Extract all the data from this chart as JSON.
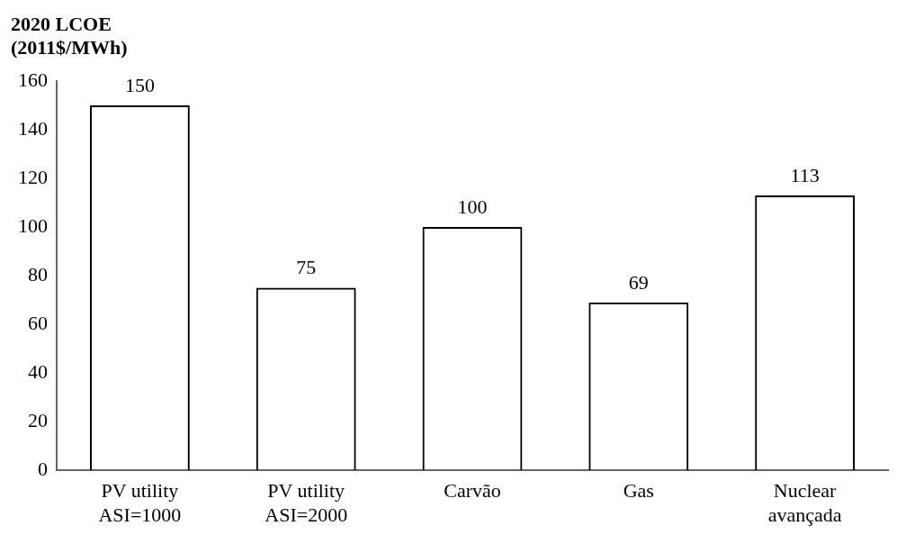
{
  "chart_data": {
    "type": "bar",
    "ylabel": "2020 LCOE\n(2011$/MWh)",
    "categories": [
      "PV utility\nASI=1000",
      "PV utility\nASI=2000",
      "Carvão",
      "Gas",
      "Nuclear\navançada"
    ],
    "values": [
      150,
      75,
      100,
      69,
      113
    ],
    "color": "#000000",
    "ylim": [
      0,
      160
    ],
    "yticks": [
      0,
      20,
      40,
      60,
      80,
      100,
      120,
      140,
      160
    ],
    "grid": false,
    "legend": false,
    "data_labels": true
  }
}
